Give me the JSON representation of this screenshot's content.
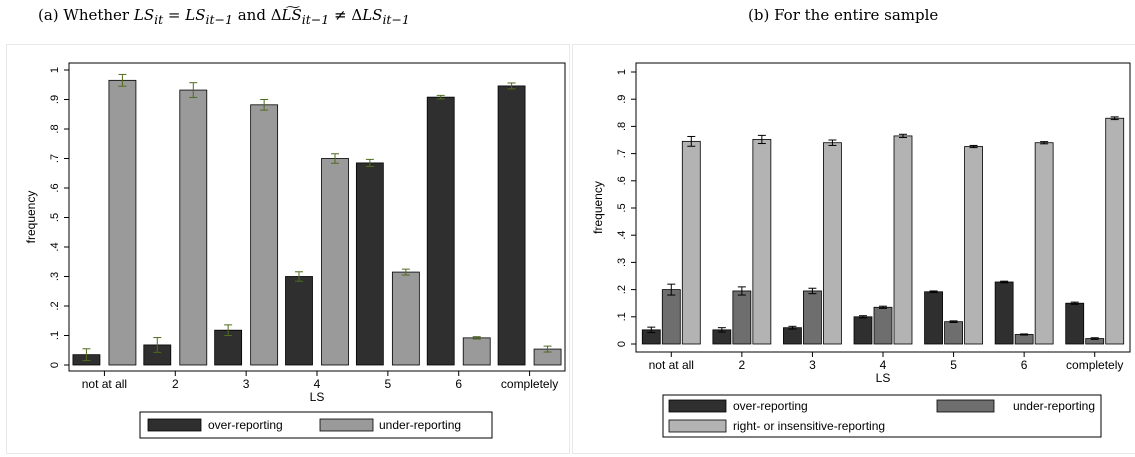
{
  "captions": {
    "a": "(a) Whether LS_it = LS_it−1 and ΔLS̃_it−1 ≠ ΔLS_it−1",
    "b": "(b) For the entire sample"
  },
  "colors": {
    "over": "#2f2f2f",
    "under_a": "#9a9a9a",
    "under_b": "#6e6e6e",
    "right": "#b3b3b3",
    "errorbar_a": "#4f6b1e",
    "errorbar_b": "#000000"
  },
  "chart_data": [
    {
      "id": "a",
      "type": "bar",
      "xlabel": "LS",
      "ylabel": "frequency",
      "ylim": [
        0,
        1
      ],
      "yticks": [
        "0",
        ".1",
        ".2",
        ".3",
        ".4",
        ".5",
        ".6",
        ".7",
        ".8",
        ".9",
        "1"
      ],
      "grid": false,
      "legend_placement": "bottom",
      "categories": [
        "not at all",
        "2",
        "3",
        "4",
        "5",
        "6",
        "completely"
      ],
      "series": [
        {
          "name": "over-reporting",
          "values": [
            0.035,
            0.068,
            0.118,
            0.3,
            0.685,
            0.908,
            0.946
          ],
          "err": [
            0.02,
            0.025,
            0.018,
            0.016,
            0.012,
            0.006,
            0.01
          ]
        },
        {
          "name": "under-reporting",
          "values": [
            0.965,
            0.932,
            0.882,
            0.7,
            0.315,
            0.092,
            0.054
          ],
          "err": [
            0.02,
            0.025,
            0.018,
            0.016,
            0.01,
            0.004,
            0.01
          ]
        }
      ]
    },
    {
      "id": "b",
      "type": "bar",
      "xlabel": "LS",
      "ylabel": "frequency",
      "ylim": [
        0,
        1
      ],
      "yticks": [
        "0",
        ".1",
        ".2",
        ".3",
        ".4",
        ".5",
        ".6",
        ".7",
        ".8",
        ".9",
        "1"
      ],
      "grid": false,
      "legend_placement": "bottom",
      "categories": [
        "not at all",
        "2",
        "3",
        "4",
        "5",
        "6",
        "completely"
      ],
      "series": [
        {
          "name": "over-reporting",
          "values": [
            0.052,
            0.052,
            0.06,
            0.1,
            0.192,
            0.228,
            0.15
          ],
          "err": [
            0.01,
            0.008,
            0.005,
            0.004,
            0.003,
            0.003,
            0.004
          ]
        },
        {
          "name": "under-reporting",
          "values": [
            0.2,
            0.195,
            0.195,
            0.135,
            0.082,
            0.035,
            0.02
          ],
          "err": [
            0.02,
            0.015,
            0.01,
            0.004,
            0.003,
            0.002,
            0.003
          ]
        },
        {
          "name": "right- or insensitive-reporting",
          "values": [
            0.745,
            0.752,
            0.74,
            0.765,
            0.726,
            0.74,
            0.83
          ],
          "err": [
            0.018,
            0.015,
            0.01,
            0.006,
            0.004,
            0.004,
            0.005
          ]
        }
      ]
    }
  ]
}
